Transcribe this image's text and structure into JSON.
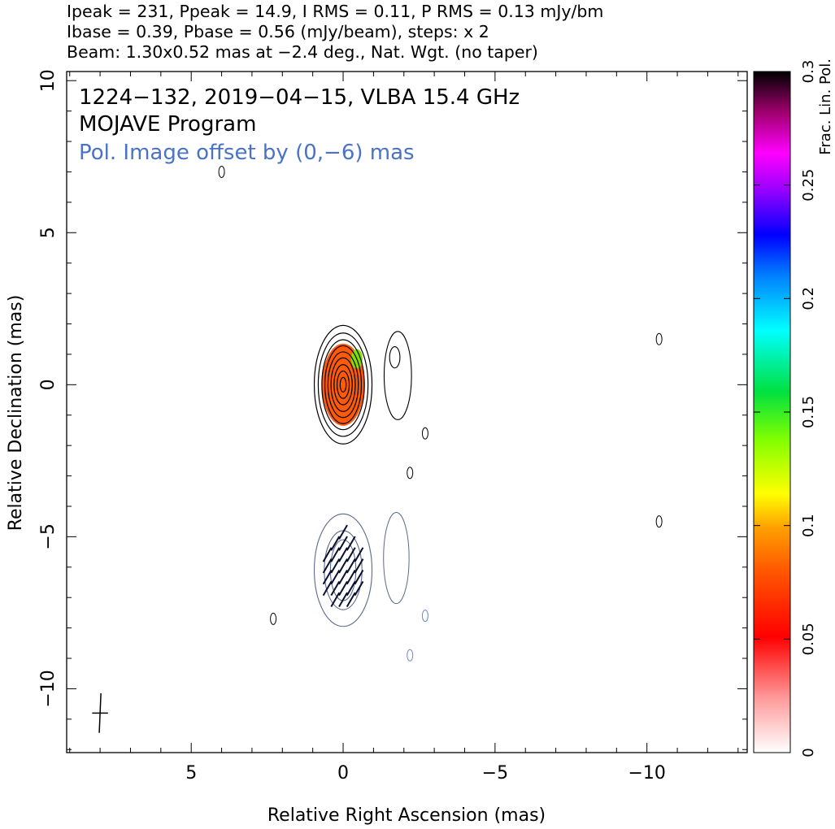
{
  "header": {
    "line1": "Ipeak = 231, Ppeak = 14.9, I RMS = 0.11, P RMS = 0.13 mJy/bm",
    "line2": "Ibase = 0.39, Pbase = 0.56 (mJy/beam), steps: x 2",
    "line3": "Beam: 1.30x0.52 mas at −2.4 deg., Nat. Wgt. (no taper)"
  },
  "chart_data": {
    "type": "contour",
    "title": "1224−132, 2019−04−15, VLBA 15.4 GHz",
    "subtitle": "MOJAVE Program",
    "annotation": "Pol. Image offset by (0,−6) mas",
    "xlabel": "Relative Right Ascension (mas)",
    "ylabel": "Relative Declination (mas)",
    "xlim": [
      9.1,
      -13.3
    ],
    "ylim": [
      -12.1,
      10.3
    ],
    "x_ticks": [
      {
        "value": 5,
        "label": "5"
      },
      {
        "value": 0,
        "label": "0"
      },
      {
        "value": -5,
        "label": "−5"
      },
      {
        "value": -10,
        "label": "−10"
      }
    ],
    "y_ticks": [
      {
        "value": 10,
        "label": "10"
      },
      {
        "value": 5,
        "label": "5"
      },
      {
        "value": 0,
        "label": "0"
      },
      {
        "value": -5,
        "label": "−5"
      },
      {
        "value": -10,
        "label": "−10"
      }
    ],
    "colorbar": {
      "label": "Frac. Lin. Pol.",
      "range": [
        0,
        0.3
      ],
      "ticks": [
        {
          "value": 0,
          "label": "0"
        },
        {
          "value": 0.05,
          "label": "0.05"
        },
        {
          "value": 0.1,
          "label": "0.1"
        },
        {
          "value": 0.15,
          "label": "0.15"
        },
        {
          "value": 0.2,
          "label": "0.2"
        },
        {
          "value": 0.25,
          "label": "0.25"
        },
        {
          "value": 0.3,
          "label": "0.3"
        }
      ]
    },
    "total_intensity_contours": {
      "color": "#000000",
      "core_center": [
        0,
        0
      ],
      "levels_semiaxes_mas": [
        [
          0.95,
          1.95
        ],
        [
          0.82,
          1.7
        ],
        [
          0.7,
          1.48
        ],
        [
          0.6,
          1.28
        ],
        [
          0.5,
          1.08
        ],
        [
          0.4,
          0.88
        ],
        [
          0.3,
          0.66
        ],
        [
          0.2,
          0.45
        ],
        [
          0.1,
          0.24
        ]
      ],
      "jet_contour_center": [
        -1.8,
        0.3
      ],
      "small_islands": [
        [
          4.0,
          7.0
        ],
        [
          -2.7,
          -1.6
        ],
        [
          -2.2,
          -2.9
        ],
        [
          -10.4,
          1.5
        ],
        [
          -10.4,
          -4.5
        ],
        [
          2.3,
          -7.7
        ]
      ]
    },
    "fractional_pol_core": {
      "center": [
        0,
        0
      ],
      "semiaxes_mas": [
        0.7,
        1.35
      ],
      "value": 0.06
    },
    "polarized_contours": {
      "color": "#5a6a8a",
      "offset_mas": [
        0,
        -6
      ],
      "center": [
        0,
        -6.1
      ],
      "small_islands": [
        [
          -2.7,
          -7.6
        ],
        [
          -2.2,
          -8.9
        ]
      ]
    },
    "evpa_vectors": {
      "color": "#0b1030",
      "count": 36,
      "angle_deg": 60
    },
    "beam": {
      "major_mas": 1.3,
      "minor_mas": 0.52,
      "pa_deg": -2.4,
      "center": [
        8.0,
        -10.8
      ]
    },
    "colors": {
      "text": "#000000",
      "annotation": "#4a72c8",
      "contour": "#000000",
      "pol_contour": "#5a6a8a"
    }
  }
}
